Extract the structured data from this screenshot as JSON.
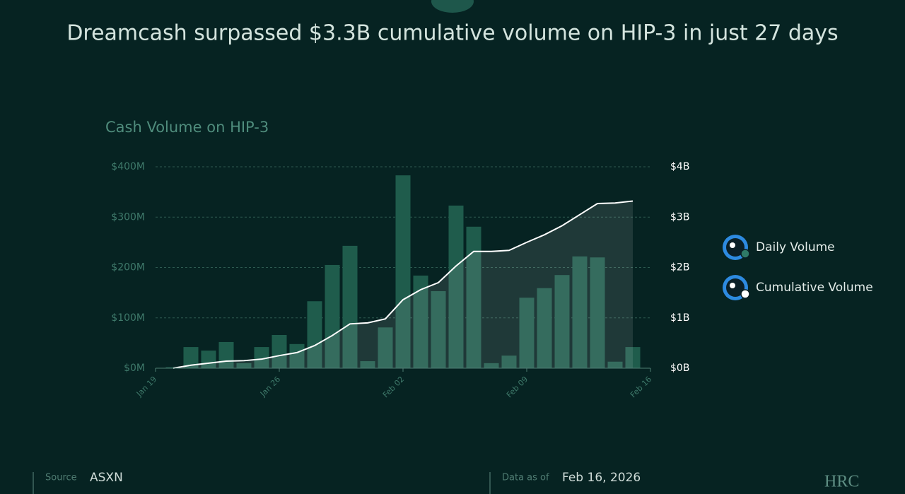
{
  "title": "Dreamcash surpassed $3.3B cumulative volume on HIP-3 in just 27 days",
  "chart_data": {
    "type": "bar",
    "title": "Cash Volume on  HIP-3",
    "categories": [
      "Jan 19",
      null,
      null,
      null,
      null,
      null,
      null,
      "Jan 26",
      null,
      null,
      null,
      null,
      null,
      null,
      "Feb 02",
      null,
      null,
      null,
      null,
      null,
      null,
      "Feb 09",
      null,
      null,
      null,
      null,
      null,
      null,
      "Feb 16"
    ],
    "series": [
      {
        "name": "Daily Volume",
        "color": "#1f5c4c",
        "values": [
          null,
          2,
          42,
          35,
          52,
          10,
          42,
          66,
          48,
          133,
          205,
          243,
          14,
          81,
          383,
          184,
          153,
          323,
          281,
          10,
          25,
          140,
          159,
          185,
          222,
          220,
          13,
          42,
          null
        ]
      },
      {
        "name": "Cumulative Volume",
        "color": "#ffffff",
        "axis": "y2",
        "type": "line",
        "values": [
          null,
          0,
          0.06,
          0.1,
          0.14,
          0.15,
          0.18,
          0.25,
          0.31,
          0.45,
          0.65,
          0.88,
          0.9,
          0.98,
          1.36,
          1.56,
          1.7,
          2.03,
          2.32,
          2.32,
          2.34,
          2.5,
          2.65,
          2.83,
          3.05,
          3.27,
          3.28,
          3.32,
          null
        ]
      }
    ],
    "ylim": [
      0,
      400
    ],
    "yticks": [
      {
        "value": 0,
        "label": "$0M"
      },
      {
        "value": 100,
        "label": "$100M"
      },
      {
        "value": 200,
        "label": "$200M"
      },
      {
        "value": 300,
        "label": "$300M"
      },
      {
        "value": 400,
        "label": "$400M"
      }
    ],
    "y2lim": [
      0,
      4
    ],
    "y2ticks": [
      {
        "value": 0,
        "label": "$0B"
      },
      {
        "value": 1,
        "label": "$1B"
      },
      {
        "value": 2,
        "label": "$2B"
      },
      {
        "value": 3,
        "label": "$3B"
      },
      {
        "value": 4,
        "label": "$4B"
      }
    ],
    "grid": true,
    "legend": "right"
  },
  "footer": {
    "source_label": "Source",
    "source": "ASXN",
    "date_label": "Data as of",
    "date": "Feb 16, 2026",
    "brand": "HRC"
  }
}
